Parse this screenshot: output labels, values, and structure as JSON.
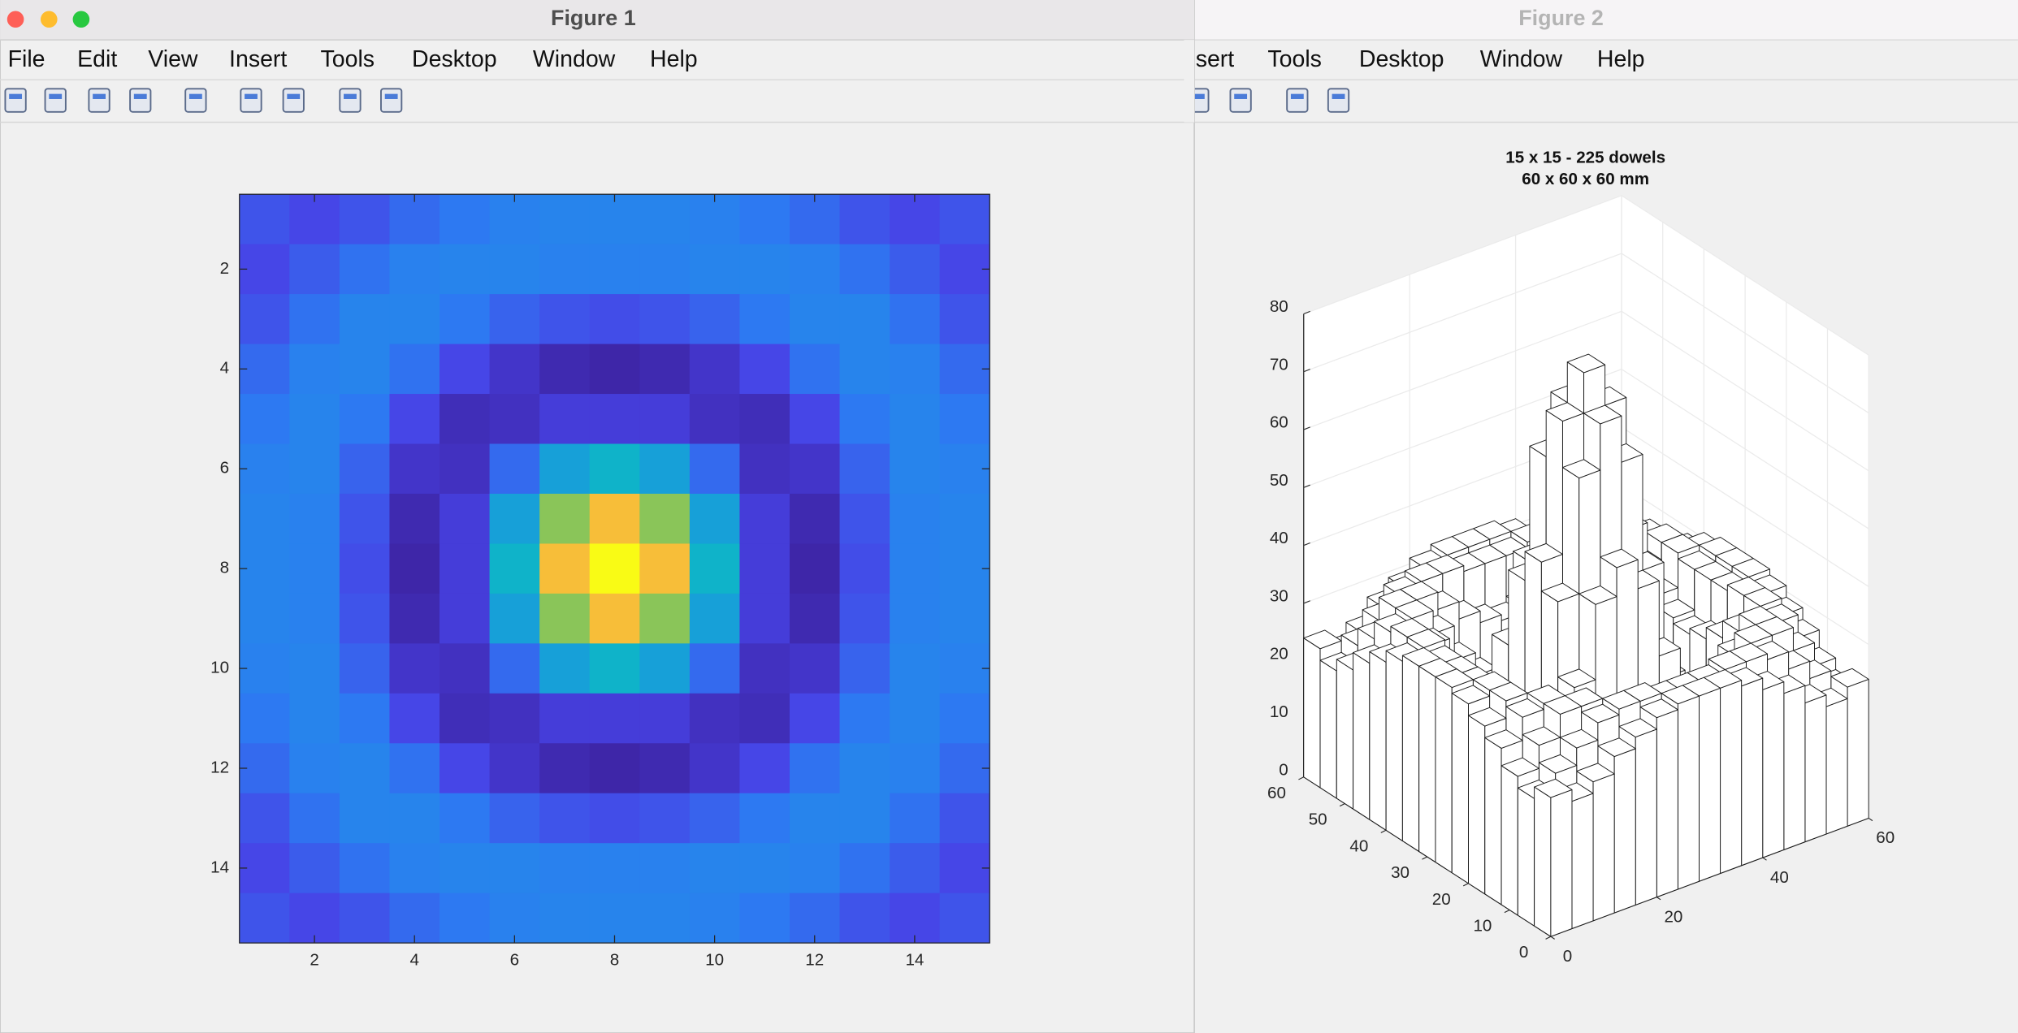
{
  "windows": [
    {
      "title": "Figure 1",
      "menu": [
        "File",
        "Edit",
        "View",
        "Insert",
        "Tools",
        "Desktop",
        "Window",
        "Help"
      ]
    },
    {
      "title": "Figure 2",
      "menu": [
        "Insert",
        "Tools",
        "Desktop",
        "Window",
        "Help"
      ]
    }
  ],
  "chart_data": [
    {
      "type": "heatmap",
      "colormap": "parula",
      "xlim": [
        0.5,
        15.5
      ],
      "ylim": [
        0.5,
        15.5
      ],
      "y_reversed": true,
      "xticks": [
        2,
        4,
        6,
        8,
        10,
        12,
        14
      ],
      "yticks": [
        2,
        4,
        6,
        8,
        10,
        12,
        14
      ],
      "values": [
        [
          24,
          22,
          24,
          27,
          29,
          31,
          32,
          32,
          32,
          31,
          29,
          27,
          24,
          22,
          24
        ],
        [
          22,
          25,
          28,
          31,
          32,
          32,
          31,
          31,
          31,
          32,
          32,
          31,
          28,
          25,
          22
        ],
        [
          24,
          28,
          32,
          32,
          29,
          26,
          24,
          23,
          24,
          26,
          29,
          32,
          32,
          28,
          24
        ],
        [
          27,
          31,
          32,
          28,
          22,
          18,
          15,
          14,
          15,
          18,
          22,
          28,
          32,
          31,
          27
        ],
        [
          29,
          32,
          29,
          22,
          16,
          17,
          20,
          20,
          20,
          17,
          16,
          22,
          29,
          32,
          29
        ],
        [
          31,
          32,
          26,
          18,
          17,
          27,
          40,
          45,
          40,
          27,
          17,
          18,
          26,
          32,
          31
        ],
        [
          32,
          31,
          24,
          15,
          20,
          40,
          60,
          68,
          60,
          40,
          20,
          15,
          24,
          31,
          32
        ],
        [
          32,
          31,
          23,
          14,
          20,
          45,
          68,
          75,
          68,
          45,
          20,
          14,
          23,
          31,
          32
        ],
        [
          32,
          31,
          24,
          15,
          20,
          40,
          60,
          68,
          60,
          40,
          20,
          15,
          24,
          31,
          32
        ],
        [
          31,
          32,
          26,
          18,
          17,
          27,
          40,
          45,
          40,
          27,
          17,
          18,
          26,
          32,
          31
        ],
        [
          29,
          32,
          29,
          22,
          16,
          17,
          20,
          20,
          20,
          17,
          16,
          22,
          29,
          32,
          29
        ],
        [
          27,
          31,
          32,
          28,
          22,
          18,
          15,
          14,
          15,
          18,
          22,
          28,
          32,
          31,
          27
        ],
        [
          24,
          28,
          32,
          32,
          29,
          26,
          24,
          23,
          24,
          26,
          29,
          32,
          32,
          28,
          24
        ],
        [
          22,
          25,
          28,
          31,
          32,
          32,
          31,
          31,
          31,
          32,
          32,
          31,
          28,
          25,
          22
        ],
        [
          24,
          22,
          24,
          27,
          29,
          31,
          32,
          32,
          32,
          31,
          29,
          27,
          24,
          22,
          24
        ]
      ]
    },
    {
      "type": "bar3",
      "title": [
        "15 x 15  -  225 dowels",
        "60 x 60 x 60 mm"
      ],
      "color": "#ffffff",
      "xlim": [
        0,
        60
      ],
      "ylim": [
        0,
        60
      ],
      "zlim": [
        0,
        80
      ],
      "xticks": [
        0,
        20,
        40,
        60
      ],
      "yticks": [
        0,
        10,
        20,
        30,
        40,
        50,
        60
      ],
      "zticks": [
        0,
        10,
        20,
        30,
        40,
        50,
        60,
        70,
        80
      ],
      "values": [
        [
          24,
          22,
          24,
          27,
          29,
          31,
          32,
          32,
          32,
          31,
          29,
          27,
          24,
          22,
          24
        ],
        [
          22,
          25,
          28,
          31,
          32,
          32,
          31,
          31,
          31,
          32,
          32,
          31,
          28,
          25,
          22
        ],
        [
          24,
          28,
          32,
          32,
          29,
          26,
          24,
          23,
          24,
          26,
          29,
          32,
          32,
          28,
          24
        ],
        [
          27,
          31,
          32,
          28,
          22,
          18,
          15,
          14,
          15,
          18,
          22,
          28,
          32,
          31,
          27
        ],
        [
          29,
          32,
          29,
          22,
          16,
          17,
          20,
          20,
          20,
          17,
          16,
          22,
          29,
          32,
          29
        ],
        [
          31,
          32,
          26,
          18,
          17,
          27,
          40,
          45,
          40,
          27,
          17,
          18,
          26,
          32,
          31
        ],
        [
          32,
          31,
          24,
          15,
          20,
          40,
          60,
          68,
          60,
          40,
          20,
          15,
          24,
          31,
          32
        ],
        [
          32,
          31,
          23,
          14,
          20,
          45,
          68,
          75,
          68,
          45,
          20,
          14,
          23,
          31,
          32
        ],
        [
          32,
          31,
          24,
          15,
          20,
          40,
          60,
          68,
          60,
          40,
          20,
          15,
          24,
          31,
          32
        ],
        [
          31,
          32,
          26,
          18,
          17,
          27,
          40,
          45,
          40,
          27,
          17,
          18,
          26,
          32,
          31
        ],
        [
          29,
          32,
          29,
          22,
          16,
          17,
          20,
          20,
          20,
          17,
          16,
          22,
          29,
          32,
          29
        ],
        [
          27,
          31,
          32,
          28,
          22,
          18,
          15,
          14,
          15,
          18,
          22,
          28,
          32,
          31,
          27
        ],
        [
          24,
          28,
          32,
          32,
          29,
          26,
          24,
          23,
          24,
          26,
          29,
          32,
          32,
          28,
          24
        ],
        [
          22,
          25,
          28,
          31,
          32,
          32,
          31,
          31,
          31,
          32,
          32,
          31,
          28,
          25,
          22
        ],
        [
          24,
          22,
          24,
          27,
          29,
          31,
          32,
          32,
          32,
          31,
          29,
          27,
          24,
          22,
          24
        ]
      ]
    }
  ]
}
